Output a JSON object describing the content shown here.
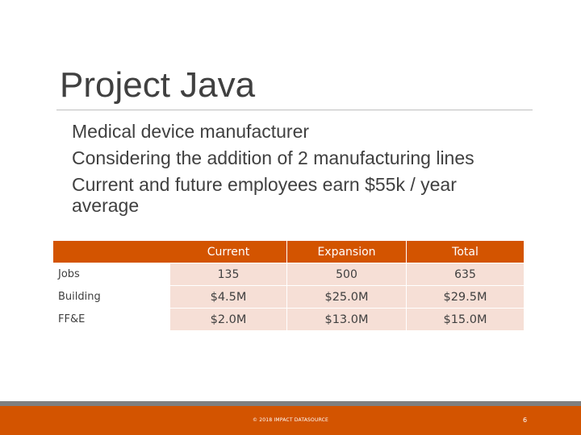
{
  "slide": {
    "title": "Project Java",
    "bullets": [
      "Medical device manufacturer",
      "Considering the addition of 2 manufacturing lines",
      "Current and future employees earn $55k / year average"
    ],
    "table": {
      "headers": [
        "",
        "Current",
        "Expansion",
        "Total"
      ],
      "rows": [
        {
          "label": "Jobs",
          "current": "135",
          "expansion": "500",
          "total": "635"
        },
        {
          "label": "Building",
          "current": "$4.5M",
          "expansion": "$25.0M",
          "total": "$29.5M"
        },
        {
          "label": "FF&E",
          "current": "$2.0M",
          "expansion": "$13.0M",
          "total": "$15.0M"
        }
      ]
    },
    "footer": {
      "copyright": "© 2018 IMPACT DATASOURCE",
      "page_number": "6"
    },
    "colors": {
      "accent": "#d35400",
      "row_fill": "#f6dfd6",
      "text": "#404040"
    }
  }
}
